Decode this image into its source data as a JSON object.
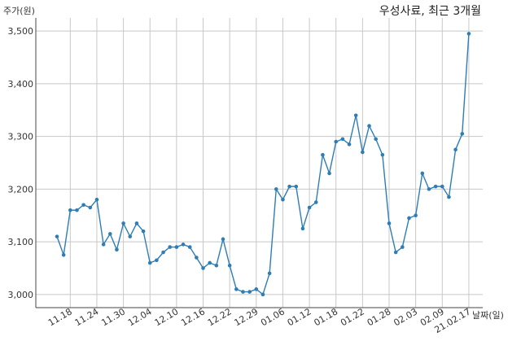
{
  "chart_data": {
    "type": "line",
    "title": "우성사료, 최근 3개월",
    "ylabel": "주가(원)",
    "xlabel": "날짜(일)",
    "ylim": [
      2975,
      3525
    ],
    "yticks": [
      3000,
      3100,
      3200,
      3300,
      3400,
      3500
    ],
    "ytick_labels": [
      "3,000",
      "3,100",
      "3,200",
      "3,300",
      "3,400",
      "3,500"
    ],
    "xtick_labels": [
      "11.18",
      "11.24",
      "11.30",
      "12.04",
      "12.10",
      "12.16",
      "12.22",
      "12.29",
      "01.06",
      "01.12",
      "01.18",
      "01.22",
      "01.28",
      "02.03",
      "02.09",
      "21.02.17"
    ],
    "xtick_index": [
      2,
      6,
      10,
      14,
      18,
      22,
      26,
      30,
      34,
      38,
      42,
      46,
      50,
      54,
      58,
      62
    ],
    "grid": true,
    "color": "#2e7db5",
    "values": [
      3110,
      3075,
      3160,
      3160,
      3170,
      3165,
      3180,
      3095,
      3115,
      3085,
      3135,
      3110,
      3135,
      3120,
      3060,
      3065,
      3080,
      3090,
      3090,
      3095,
      3090,
      3070,
      3050,
      3060,
      3055,
      3105,
      3055,
      3010,
      3005,
      3005,
      3010,
      3000,
      3040,
      3200,
      3180,
      3205,
      3205,
      3125,
      3165,
      3175,
      3265,
      3230,
      3290,
      3295,
      3285,
      3340,
      3270,
      3320,
      3295,
      3265,
      3135,
      3080,
      3090,
      3145,
      3150,
      3230,
      3200,
      3205,
      3205,
      3185,
      3275,
      3305,
      3495
    ]
  }
}
